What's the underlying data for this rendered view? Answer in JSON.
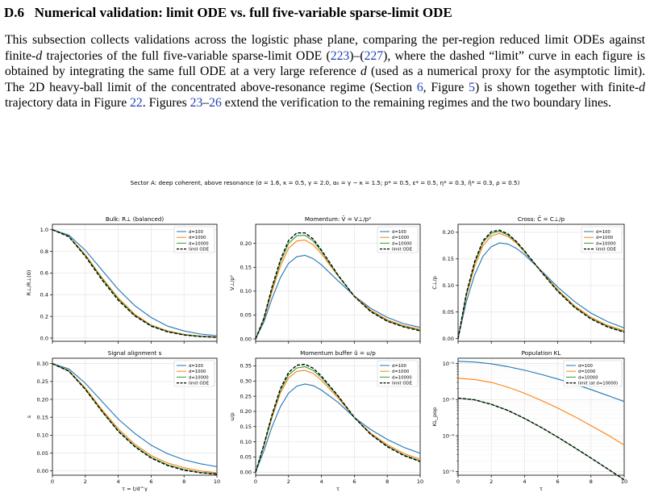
{
  "section": {
    "number": "D.6",
    "title": "Numerical validation: limit ODE vs. full five-variable sparse-limit ODE"
  },
  "paragraph": {
    "t1": "This subsection collects validations across the logistic phase plane, comparing the per-region reduced limit ODEs against finite-",
    "d1": "d",
    "t2": " trajectories of the full five-variable sparse-limit ODE (",
    "r1": "223",
    "t3": ")–(",
    "r2": "227",
    "t4": "), where the dashed “limit” curve in each figure is obtained by integrating the same full ODE at a very large reference ",
    "d2": "d",
    "t5": " (used as a numerical proxy for the asymptotic limit). The 2D heavy-ball limit of the concentrated above-resonance regime (Section ",
    "r3": "6",
    "t6": ", Figure ",
    "r4": "5",
    "t7": ") is shown together with finite-",
    "d3": "d",
    "t8": " trajectory data in Figure ",
    "r5": "22",
    "t9": ". Figures ",
    "r6": "23",
    "t10": "–",
    "r7": "26",
    "t11": " extend the verification to the remaining regimes and the two boundary lines."
  },
  "figure_title": "Sector A: deep coherent, above resonance (σ = 1.6, κ = 0.5, γ = 2.0, α₀ = γ − κ = 1.5; p* = 0.5, ε* = 0.5, η* = 0.3, η̄* = 0.3, ρ = 0.5)",
  "colors": {
    "d100": "#1f77b4",
    "d1000": "#ff7f0e",
    "d10000": "#2ca02c",
    "limit": "#000000",
    "grid": "#e3e3e3"
  },
  "chart_data": [
    {
      "type": "line",
      "title": "Bulk: R⊥ (balanced)",
      "xlabel": "",
      "ylabel": "R⊥/R⊥(0)",
      "xlim": [
        0,
        10
      ],
      "ylim": [
        -0.03,
        1.05
      ],
      "xticks": [
        "0",
        "2",
        "4",
        "6",
        "8",
        "10"
      ],
      "yticks": [
        "0.0",
        "0.2",
        "0.4",
        "0.6",
        "0.8",
        "1.0"
      ],
      "legend": "top-right",
      "x": [
        0,
        1,
        2,
        3,
        4,
        5,
        6,
        7,
        8,
        9,
        10
      ],
      "series": [
        {
          "name": "d=100",
          "values": [
            1.0,
            0.95,
            0.81,
            0.63,
            0.45,
            0.3,
            0.19,
            0.11,
            0.065,
            0.037,
            0.022
          ]
        },
        {
          "name": "d=1000",
          "values": [
            1.0,
            0.94,
            0.77,
            0.56,
            0.37,
            0.22,
            0.12,
            0.065,
            0.034,
            0.018,
            0.01
          ]
        },
        {
          "name": "d=10000",
          "values": [
            1.0,
            0.94,
            0.76,
            0.55,
            0.36,
            0.21,
            0.115,
            0.06,
            0.03,
            0.016,
            0.008
          ]
        },
        {
          "name": "limit ODE",
          "values": [
            1.0,
            0.935,
            0.755,
            0.54,
            0.35,
            0.205,
            0.11,
            0.057,
            0.028,
            0.014,
            0.007
          ]
        }
      ]
    },
    {
      "type": "line",
      "title": "Momentum: V̄ = V⊥/p²",
      "xlabel": "",
      "ylabel": "V⊥/p²",
      "xlim": [
        0,
        10
      ],
      "ylim": [
        -0.005,
        0.24
      ],
      "xticks": [
        "0",
        "2",
        "4",
        "6",
        "8",
        "10"
      ],
      "yticks": [
        "0.00",
        "0.05",
        "0.10",
        "0.15",
        "0.20"
      ],
      "legend": "top-right",
      "x": [
        0,
        0.5,
        1,
        1.5,
        2,
        2.5,
        3,
        3.5,
        4,
        5,
        6,
        7,
        8,
        9,
        10
      ],
      "series": [
        {
          "name": "d=100",
          "values": [
            0,
            0.035,
            0.085,
            0.128,
            0.158,
            0.172,
            0.175,
            0.168,
            0.155,
            0.122,
            0.09,
            0.064,
            0.045,
            0.032,
            0.024
          ]
        },
        {
          "name": "d=1000",
          "values": [
            0,
            0.04,
            0.1,
            0.152,
            0.19,
            0.205,
            0.207,
            0.197,
            0.178,
            0.132,
            0.09,
            0.06,
            0.04,
            0.028,
            0.02
          ]
        },
        {
          "name": "d=10000",
          "values": [
            0,
            0.042,
            0.106,
            0.16,
            0.2,
            0.216,
            0.217,
            0.205,
            0.183,
            0.133,
            0.089,
            0.058,
            0.038,
            0.026,
            0.018
          ]
        },
        {
          "name": "limit ODE",
          "values": [
            0,
            0.043,
            0.109,
            0.165,
            0.206,
            0.222,
            0.222,
            0.209,
            0.186,
            0.134,
            0.089,
            0.057,
            0.037,
            0.025,
            0.017
          ]
        }
      ]
    },
    {
      "type": "line",
      "title": "Cross: C̄ = C⊥/p",
      "xlabel": "",
      "ylabel": "C⊥/p",
      "xlim": [
        0,
        10
      ],
      "ylim": [
        -0.005,
        0.215
      ],
      "xticks": [
        "0",
        "2",
        "4",
        "6",
        "8",
        "10"
      ],
      "yticks": [
        "0.00",
        "0.05",
        "0.10",
        "0.15",
        "0.20"
      ],
      "legend": "top-right",
      "x": [
        0,
        0.5,
        1,
        1.5,
        2,
        2.5,
        3,
        3.5,
        4,
        5,
        6,
        7,
        8,
        9,
        10
      ],
      "series": [
        {
          "name": "d=100",
          "values": [
            0,
            0.07,
            0.12,
            0.155,
            0.173,
            0.18,
            0.178,
            0.17,
            0.158,
            0.128,
            0.097,
            0.07,
            0.048,
            0.032,
            0.02
          ]
        },
        {
          "name": "d=1000",
          "values": [
            0,
            0.08,
            0.136,
            0.175,
            0.193,
            0.198,
            0.192,
            0.18,
            0.163,
            0.127,
            0.092,
            0.062,
            0.04,
            0.025,
            0.015
          ]
        },
        {
          "name": "d=10000",
          "values": [
            0,
            0.083,
            0.142,
            0.181,
            0.198,
            0.202,
            0.195,
            0.182,
            0.164,
            0.126,
            0.09,
            0.06,
            0.038,
            0.023,
            0.013
          ]
        },
        {
          "name": "limit ODE",
          "values": [
            0,
            0.085,
            0.145,
            0.184,
            0.201,
            0.204,
            0.197,
            0.183,
            0.165,
            0.126,
            0.089,
            0.059,
            0.037,
            0.022,
            0.012
          ]
        }
      ]
    },
    {
      "type": "line",
      "title": "Signal alignment s",
      "xlabel": "τ = t/d^γ",
      "ylabel": "s",
      "xlim": [
        0,
        10
      ],
      "ylim": [
        -0.012,
        0.315
      ],
      "xticks": [
        "0",
        "2",
        "4",
        "6",
        "8",
        "10"
      ],
      "yticks": [
        "0.00",
        "0.05",
        "0.10",
        "0.15",
        "0.20",
        "0.25",
        "0.30"
      ],
      "legend": "top-right",
      "x": [
        0,
        1,
        2,
        3,
        4,
        5,
        6,
        7,
        8,
        9,
        10
      ],
      "series": [
        {
          "name": "d=100",
          "values": [
            0.3,
            0.285,
            0.245,
            0.195,
            0.145,
            0.105,
            0.072,
            0.048,
            0.031,
            0.02,
            0.012
          ]
        },
        {
          "name": "d=1000",
          "values": [
            0.3,
            0.28,
            0.232,
            0.172,
            0.118,
            0.075,
            0.043,
            0.022,
            0.009,
            0.0,
            -0.005
          ]
        },
        {
          "name": "d=10000",
          "values": [
            0.3,
            0.279,
            0.229,
            0.168,
            0.113,
            0.07,
            0.038,
            0.017,
            0.004,
            -0.004,
            -0.008
          ]
        },
        {
          "name": "limit ODE",
          "values": [
            0.3,
            0.279,
            0.228,
            0.167,
            0.111,
            0.068,
            0.036,
            0.015,
            0.002,
            -0.005,
            -0.009
          ]
        }
      ]
    },
    {
      "type": "line",
      "title": "Momentum buffer ũ = u/p",
      "xlabel": "τ",
      "ylabel": "u/p",
      "xlim": [
        0,
        10
      ],
      "ylim": [
        -0.01,
        0.375
      ],
      "xticks": [
        "0",
        "2",
        "4",
        "6",
        "8",
        "10"
      ],
      "yticks": [
        "0.00",
        "0.05",
        "0.10",
        "0.15",
        "0.20",
        "0.25",
        "0.30",
        "0.35"
      ],
      "legend": "top-right",
      "x": [
        0,
        0.5,
        1,
        1.5,
        2,
        2.5,
        3,
        3.5,
        4,
        5,
        6,
        7,
        8,
        9,
        10
      ],
      "series": [
        {
          "name": "d=100",
          "values": [
            0,
            0.07,
            0.15,
            0.215,
            0.26,
            0.283,
            0.29,
            0.285,
            0.27,
            0.23,
            0.18,
            0.14,
            0.108,
            0.082,
            0.062
          ]
        },
        {
          "name": "d=1000",
          "values": [
            0,
            0.085,
            0.18,
            0.26,
            0.31,
            0.332,
            0.335,
            0.325,
            0.302,
            0.245,
            0.18,
            0.128,
            0.09,
            0.062,
            0.042
          ]
        },
        {
          "name": "d=10000",
          "values": [
            0,
            0.088,
            0.186,
            0.268,
            0.32,
            0.343,
            0.347,
            0.335,
            0.311,
            0.25,
            0.18,
            0.125,
            0.086,
            0.057,
            0.037
          ]
        },
        {
          "name": "limit ODE",
          "values": [
            0,
            0.09,
            0.19,
            0.274,
            0.328,
            0.352,
            0.355,
            0.342,
            0.316,
            0.252,
            0.18,
            0.124,
            0.084,
            0.055,
            0.035
          ]
        }
      ]
    },
    {
      "type": "line",
      "title": "Population KL",
      "xlabel": "τ",
      "ylabel": "KL_pop",
      "yscale": "log",
      "xlim": [
        0,
        10
      ],
      "ylim": [
        8e-06,
        0.014
      ],
      "xticks": [
        "0",
        "2",
        "4",
        "6",
        "8",
        "10"
      ],
      "yticks": [
        "10⁻⁵",
        "10⁻⁴",
        "10⁻³",
        "10⁻²"
      ],
      "legend": "top-right",
      "x": [
        0,
        1,
        2,
        3,
        4,
        5,
        6,
        7,
        8,
        9,
        10
      ],
      "series": [
        {
          "name": "d=100",
          "values": [
            0.0115,
            0.011,
            0.0098,
            0.0082,
            0.0065,
            0.005,
            0.0037,
            0.0027,
            0.0019,
            0.0013,
            0.00088
          ]
        },
        {
          "name": "d=1000",
          "values": [
            0.0039,
            0.0036,
            0.003,
            0.0022,
            0.0015,
            0.00095,
            0.00058,
            0.00034,
            0.00019,
            0.000105,
            5.5e-05
          ]
        },
        {
          "name": "d=10000",
          "values": [
            0.0011,
            0.00098,
            0.00074,
            0.0005,
            0.0003,
            0.00017,
            9.1e-05,
            4.7e-05,
            2.4e-05,
            1.2e-05,
            6e-06
          ]
        },
        {
          "name": "limit (at d=10000)",
          "values": [
            0.0011,
            0.00098,
            0.00074,
            0.0005,
            0.0003,
            0.00017,
            9.1e-05,
            4.7e-05,
            2.4e-05,
            1.2e-05,
            6e-06
          ]
        }
      ]
    }
  ]
}
